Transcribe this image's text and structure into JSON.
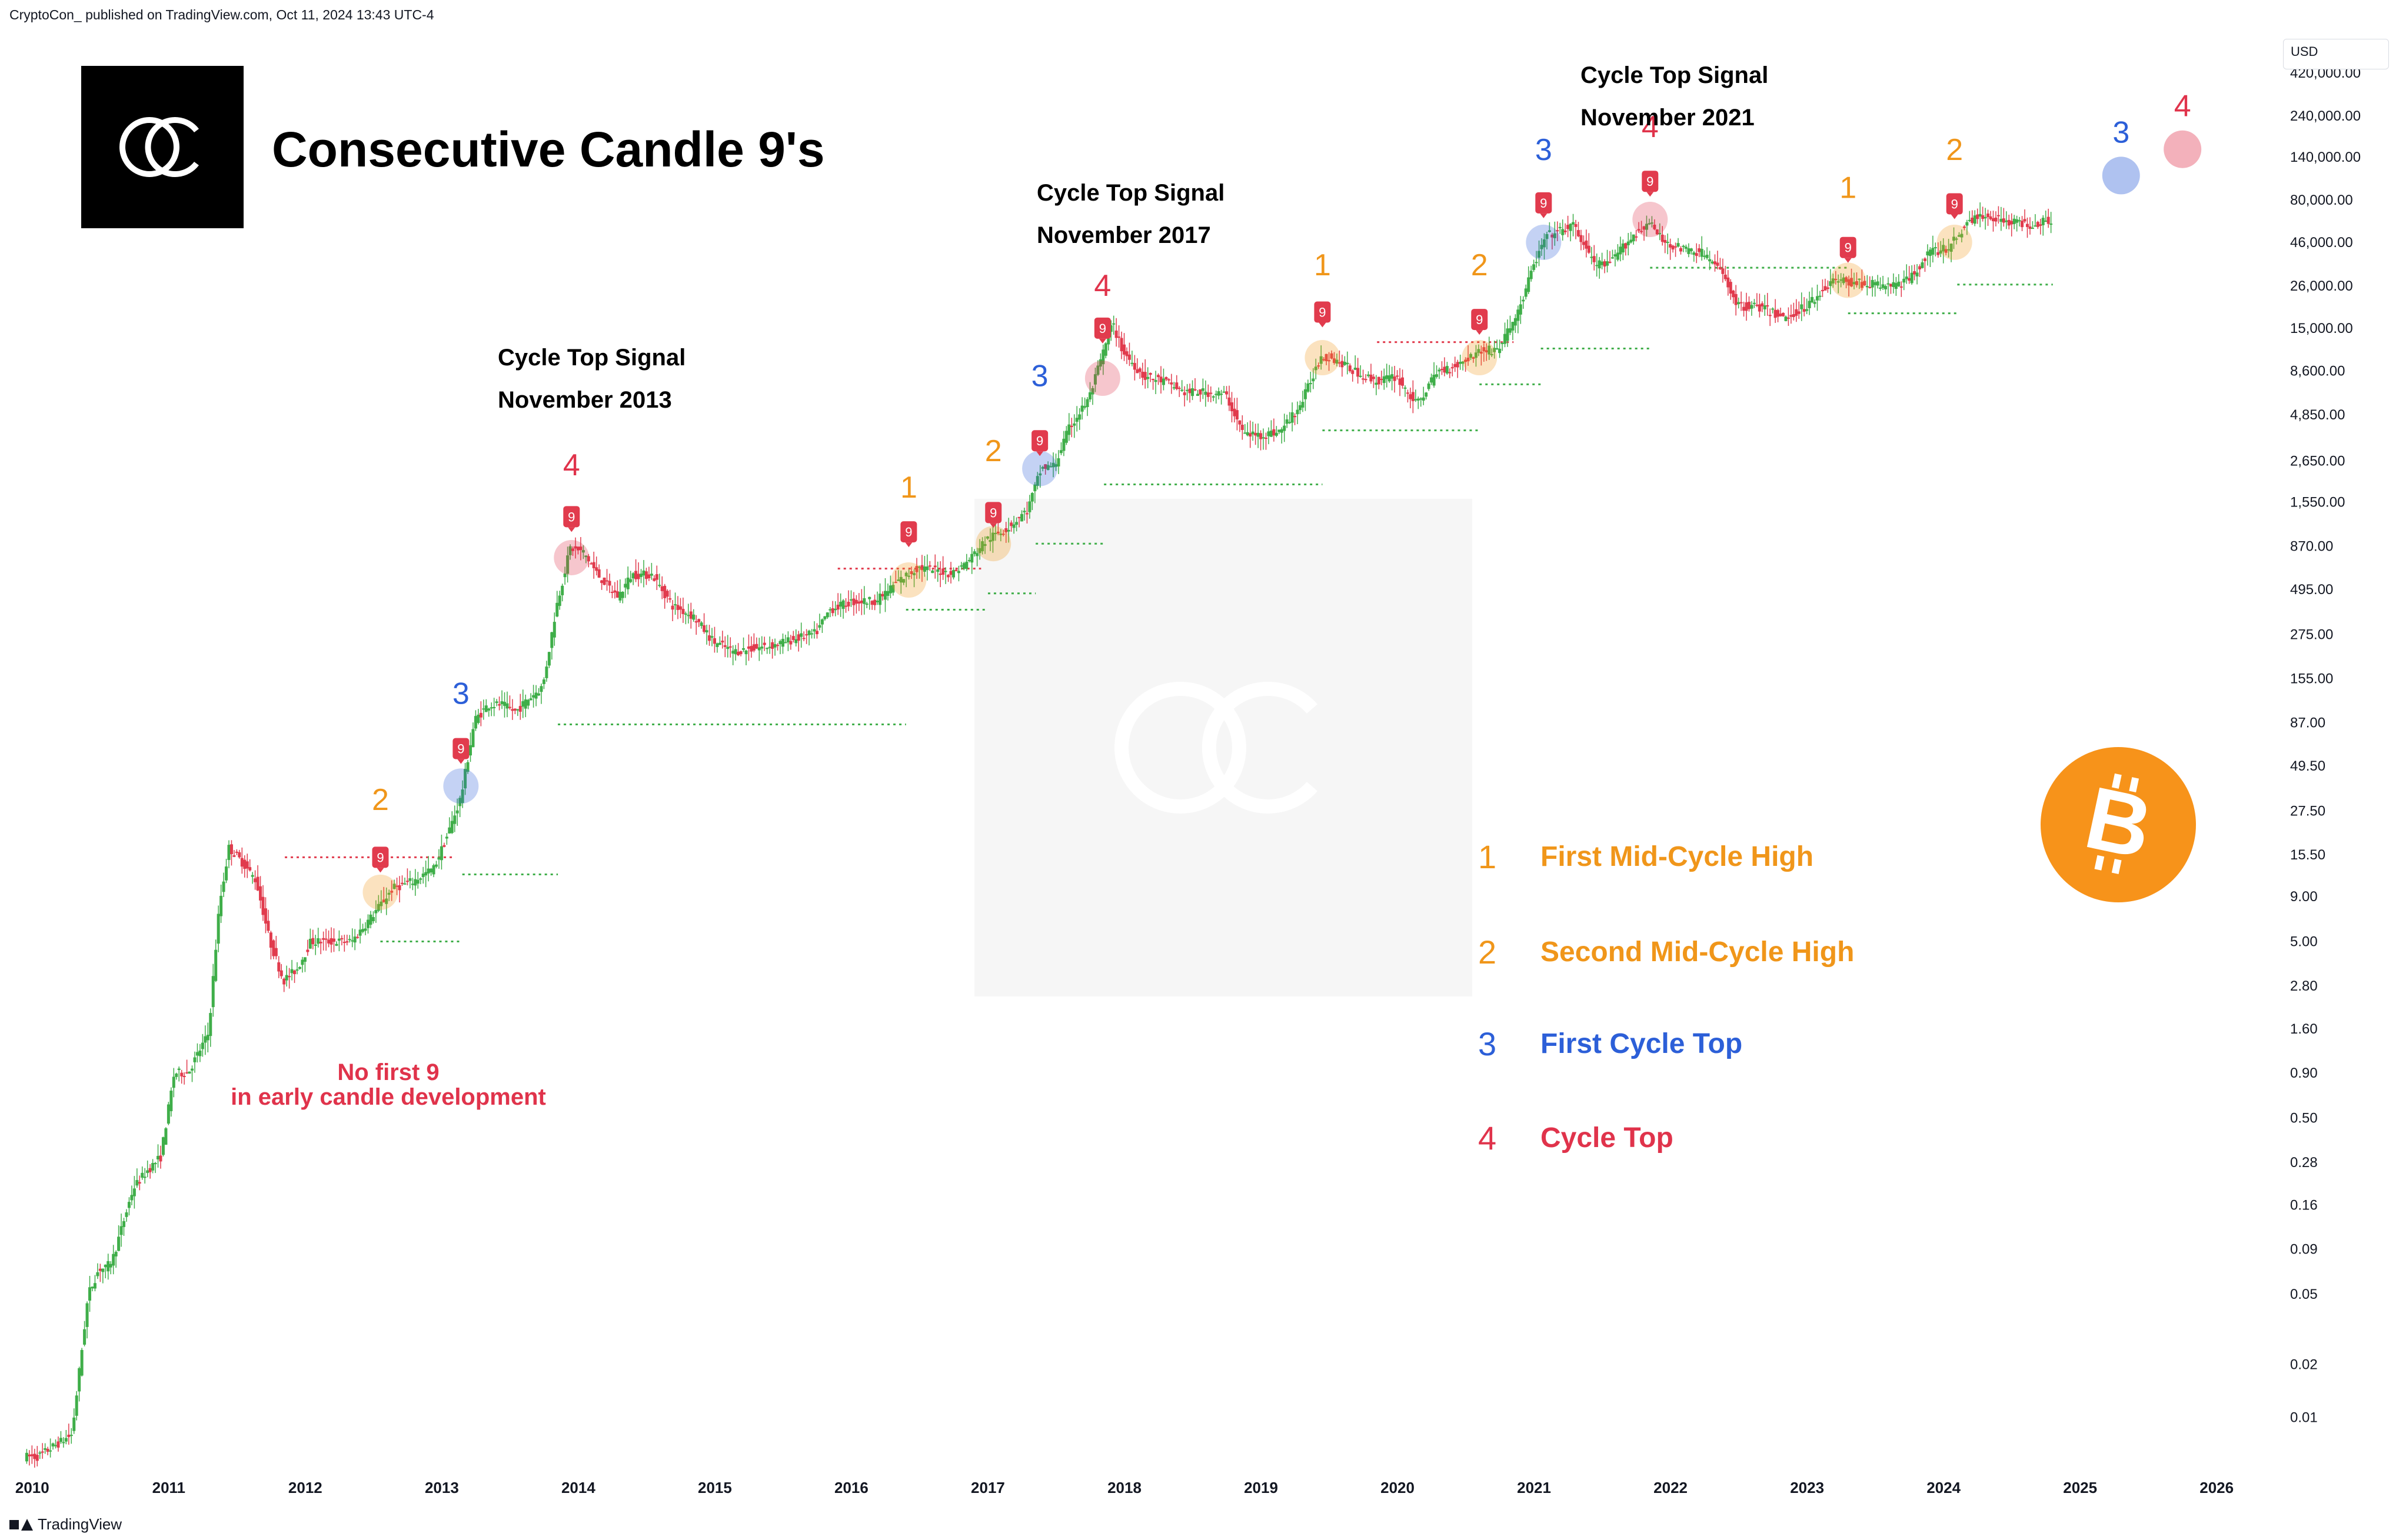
{
  "header": {
    "published": "CryptoCon_ published on TradingView.com, Oct 11, 2024 13:43 UTC-4"
  },
  "footer": {
    "brand": "TradingView"
  },
  "chart_data": {
    "type": "candlestick",
    "title": "Consecutive Candle 9's",
    "yscale": "log",
    "currency": "USD",
    "ylim": [
      0.005,
      800000
    ],
    "xlim": [
      2009.85,
      2026.4
    ],
    "y_ticks": [
      {
        "v": 420000,
        "label": "420,000.00"
      },
      {
        "v": 240000,
        "label": "240,000.00"
      },
      {
        "v": 140000,
        "label": "140,000.00"
      },
      {
        "v": 80000,
        "label": "80,000.00"
      },
      {
        "v": 46000,
        "label": "46,000.00"
      },
      {
        "v": 26000,
        "label": "26,000.00"
      },
      {
        "v": 15000,
        "label": "15,000.00"
      },
      {
        "v": 8600,
        "label": "8,600.00"
      },
      {
        "v": 4850,
        "label": "4,850.00"
      },
      {
        "v": 2650,
        "label": "2,650.00"
      },
      {
        "v": 1550,
        "label": "1,550.00"
      },
      {
        "v": 870,
        "label": "870.00"
      },
      {
        "v": 495,
        "label": "495.00"
      },
      {
        "v": 275,
        "label": "275.00"
      },
      {
        "v": 155,
        "label": "155.00"
      },
      {
        "v": 87,
        "label": "87.00"
      },
      {
        "v": 49.5,
        "label": "49.50"
      },
      {
        "v": 27.5,
        "label": "27.50"
      },
      {
        "v": 15.5,
        "label": "15.50"
      },
      {
        "v": 9,
        "label": "9.00"
      },
      {
        "v": 5,
        "label": "5.00"
      },
      {
        "v": 2.8,
        "label": "2.80"
      },
      {
        "v": 1.6,
        "label": "1.60"
      },
      {
        "v": 0.9,
        "label": "0.90"
      },
      {
        "v": 0.5,
        "label": "0.50"
      },
      {
        "v": 0.28,
        "label": "0.28"
      },
      {
        "v": 0.16,
        "label": "0.16"
      },
      {
        "v": 0.09,
        "label": "0.09"
      },
      {
        "v": 0.05,
        "label": "0.05"
      },
      {
        "v": 0.02,
        "label": "0.02"
      },
      {
        "v": 0.01,
        "label": "0.01"
      }
    ],
    "x_ticks": [
      {
        "v": 2010,
        "label": "2010"
      },
      {
        "v": 2011,
        "label": "2011"
      },
      {
        "v": 2012,
        "label": "2012"
      },
      {
        "v": 2013,
        "label": "2013"
      },
      {
        "v": 2014,
        "label": "2014"
      },
      {
        "v": 2015,
        "label": "2015"
      },
      {
        "v": 2016,
        "label": "2016"
      },
      {
        "v": 2017,
        "label": "2017"
      },
      {
        "v": 2018,
        "label": "2018"
      },
      {
        "v": 2019,
        "label": "2019"
      },
      {
        "v": 2020,
        "label": "2020"
      },
      {
        "v": 2021,
        "label": "2021"
      },
      {
        "v": 2022,
        "label": "2022"
      },
      {
        "v": 2023,
        "label": "2023"
      },
      {
        "v": 2024,
        "label": "2024"
      },
      {
        "v": 2025,
        "label": "2025"
      },
      {
        "v": 2026,
        "label": "2026"
      }
    ],
    "price_path": [
      [
        2009.95,
        0.006
      ],
      [
        2010.05,
        0.006
      ],
      [
        2010.3,
        0.008
      ],
      [
        2010.42,
        0.05
      ],
      [
        2010.5,
        0.07
      ],
      [
        2010.55,
        0.07
      ],
      [
        2010.6,
        0.08
      ],
      [
        2010.75,
        0.2
      ],
      [
        2010.85,
        0.25
      ],
      [
        2010.95,
        0.3
      ],
      [
        2011.05,
        0.9
      ],
      [
        2011.15,
        0.9
      ],
      [
        2011.3,
        1.5
      ],
      [
        2011.38,
        8
      ],
      [
        2011.45,
        17
      ],
      [
        2011.55,
        14
      ],
      [
        2011.65,
        11
      ],
      [
        2011.75,
        5
      ],
      [
        2011.85,
        3
      ],
      [
        2011.95,
        3.5
      ],
      [
        2012.05,
        5
      ],
      [
        2012.2,
        5
      ],
      [
        2012.35,
        5
      ],
      [
        2012.5,
        7
      ],
      [
        2012.65,
        10
      ],
      [
        2012.8,
        11
      ],
      [
        2012.95,
        13
      ],
      [
        2013.05,
        20
      ],
      [
        2013.15,
        33
      ],
      [
        2013.25,
        90
      ],
      [
        2013.35,
        110
      ],
      [
        2013.45,
        110
      ],
      [
        2013.55,
        100
      ],
      [
        2013.65,
        120
      ],
      [
        2013.75,
        140
      ],
      [
        2013.85,
        400
      ],
      [
        2013.95,
        850
      ],
      [
        2014.05,
        800
      ],
      [
        2014.15,
        600
      ],
      [
        2014.3,
        450
      ],
      [
        2014.4,
        600
      ],
      [
        2014.55,
        600
      ],
      [
        2014.7,
        400
      ],
      [
        2014.85,
        350
      ],
      [
        2015.0,
        250
      ],
      [
        2015.15,
        220
      ],
      [
        2015.3,
        230
      ],
      [
        2015.45,
        240
      ],
      [
        2015.6,
        260
      ],
      [
        2015.75,
        280
      ],
      [
        2015.85,
        380
      ],
      [
        2016.0,
        420
      ],
      [
        2016.2,
        430
      ],
      [
        2016.35,
        550
      ],
      [
        2016.5,
        660
      ],
      [
        2016.6,
        640
      ],
      [
        2016.75,
        610
      ],
      [
        2016.85,
        700
      ],
      [
        2017.0,
        950
      ],
      [
        2017.15,
        1100
      ],
      [
        2017.3,
        1400
      ],
      [
        2017.4,
        2400
      ],
      [
        2017.5,
        2500
      ],
      [
        2017.6,
        4000
      ],
      [
        2017.75,
        6000
      ],
      [
        2017.92,
        16000
      ],
      [
        2018.0,
        11000
      ],
      [
        2018.15,
        8000
      ],
      [
        2018.3,
        7500
      ],
      [
        2018.45,
        6500
      ],
      [
        2018.6,
        6500
      ],
      [
        2018.75,
        6300
      ],
      [
        2018.88,
        3800
      ],
      [
        2019.0,
        3700
      ],
      [
        2019.15,
        3900
      ],
      [
        2019.3,
        5500
      ],
      [
        2019.45,
        10500
      ],
      [
        2019.55,
        10000
      ],
      [
        2019.7,
        8500
      ],
      [
        2019.85,
        7500
      ],
      [
        2020.0,
        8000
      ],
      [
        2020.15,
        5500
      ],
      [
        2020.3,
        8500
      ],
      [
        2020.45,
        9300
      ],
      [
        2020.6,
        11000
      ],
      [
        2020.75,
        11500
      ],
      [
        2020.9,
        19000
      ],
      [
        2021.0,
        33000
      ],
      [
        2021.1,
        50000
      ],
      [
        2021.3,
        57000
      ],
      [
        2021.45,
        35000
      ],
      [
        2021.55,
        34000
      ],
      [
        2021.7,
        47000
      ],
      [
        2021.85,
        60000
      ],
      [
        2021.95,
        47000
      ],
      [
        2022.1,
        42000
      ],
      [
        2022.25,
        40000
      ],
      [
        2022.4,
        30000
      ],
      [
        2022.5,
        20000
      ],
      [
        2022.65,
        20000
      ],
      [
        2022.85,
        17000
      ],
      [
        2023.0,
        20000
      ],
      [
        2023.2,
        28000
      ],
      [
        2023.4,
        27000
      ],
      [
        2023.6,
        26000
      ],
      [
        2023.75,
        28000
      ],
      [
        2023.9,
        40000
      ],
      [
        2024.05,
        43000
      ],
      [
        2024.2,
        62000
      ],
      [
        2024.35,
        65000
      ],
      [
        2024.5,
        60000
      ],
      [
        2024.65,
        58000
      ],
      [
        2024.78,
        62000
      ]
    ],
    "markers": [
      {
        "num": "2",
        "kind": "mid",
        "x": 2012.55,
        "y": 9.5
      },
      {
        "num": "3",
        "kind": "first_top",
        "x": 2013.14,
        "y": 38
      },
      {
        "num": "4",
        "kind": "top",
        "x": 2013.95,
        "y": 750
      },
      {
        "num": "1",
        "kind": "mid",
        "x": 2016.42,
        "y": 560
      },
      {
        "num": "2",
        "kind": "mid",
        "x": 2017.04,
        "y": 900
      },
      {
        "num": "3",
        "kind": "first_top",
        "x": 2017.38,
        "y": 2400
      },
      {
        "num": "4",
        "kind": "top",
        "x": 2017.84,
        "y": 7800
      },
      {
        "num": "1",
        "kind": "mid",
        "x": 2019.45,
        "y": 10200
      },
      {
        "num": "2",
        "kind": "mid",
        "x": 2020.6,
        "y": 10200
      },
      {
        "num": "3",
        "kind": "first_top",
        "x": 2021.07,
        "y": 46000
      },
      {
        "num": "4",
        "kind": "top",
        "x": 2021.85,
        "y": 62000
      },
      {
        "num": "1",
        "kind": "mid",
        "x": 2023.3,
        "y": 28000
      },
      {
        "num": "2",
        "kind": "mid",
        "x": 2024.08,
        "y": 46000
      }
    ],
    "projections": [
      {
        "num": "3",
        "kind": "first_top",
        "x": 2025.3,
        "y": 110000
      },
      {
        "num": "4",
        "kind": "top",
        "x": 2025.75,
        "y": 155000
      }
    ],
    "nine_badges": [
      {
        "label": "9",
        "x": 2012.55,
        "y": 15
      },
      {
        "label": "9",
        "x": 2013.14,
        "y": 62
      },
      {
        "label": "9",
        "x": 2013.95,
        "y": 1280
      },
      {
        "label": "9",
        "x": 2016.42,
        "y": 1050
      },
      {
        "label": "9",
        "x": 2017.04,
        "y": 1350
      },
      {
        "label": "9",
        "x": 2017.38,
        "y": 3450
      },
      {
        "label": "9",
        "x": 2017.84,
        "y": 15000
      },
      {
        "label": "9",
        "x": 2019.45,
        "y": 18500
      },
      {
        "label": "9",
        "x": 2020.6,
        "y": 16800
      },
      {
        "label": "9",
        "x": 2021.07,
        "y": 77000
      },
      {
        "label": "9",
        "x": 2021.85,
        "y": 102000
      },
      {
        "label": "9",
        "x": 2023.3,
        "y": 43000
      },
      {
        "label": "9",
        "x": 2024.08,
        "y": 76000
      }
    ],
    "red_lines": [
      {
        "x0": 2011.85,
        "x1": 2013.1,
        "y": 15
      },
      {
        "x0": 2015.9,
        "x1": 2016.95,
        "y": 650
      },
      {
        "x0": 2019.85,
        "x1": 2020.85,
        "y": 12500
      }
    ],
    "green_lines": [
      {
        "x0": 2012.55,
        "x1": 2013.15,
        "y": 5
      },
      {
        "x0": 2013.15,
        "x1": 2013.85,
        "y": 12
      },
      {
        "x0": 2013.85,
        "x1": 2016.4,
        "y": 85
      },
      {
        "x0": 2016.4,
        "x1": 2017.0,
        "y": 380
      },
      {
        "x0": 2017.0,
        "x1": 2017.35,
        "y": 470
      },
      {
        "x0": 2017.35,
        "x1": 2017.85,
        "y": 900
      },
      {
        "x0": 2017.85,
        "x1": 2019.45,
        "y": 1950
      },
      {
        "x0": 2019.45,
        "x1": 2020.6,
        "y": 3950
      },
      {
        "x0": 2020.6,
        "x1": 2021.05,
        "y": 7200
      },
      {
        "x0": 2021.05,
        "x1": 2021.85,
        "y": 11500
      },
      {
        "x0": 2021.85,
        "x1": 2023.3,
        "y": 33000
      },
      {
        "x0": 2023.3,
        "x1": 2024.1,
        "y": 18200
      },
      {
        "x0": 2024.1,
        "x1": 2024.8,
        "y": 26500
      }
    ]
  },
  "annotations": {
    "cycle_2013_line1": "Cycle Top Signal",
    "cycle_2013_line2": "November 2013",
    "cycle_2017_line1": "Cycle Top Signal",
    "cycle_2017_line2": "November 2017",
    "cycle_2021_line1": "Cycle Top Signal",
    "cycle_2021_line2": "November 2021",
    "note_line1": "No first 9",
    "note_line2": "in early candle development"
  },
  "legend": [
    {
      "num": "1",
      "label": "First Mid-Cycle High",
      "color": "#f0961a"
    },
    {
      "num": "2",
      "label": "Second Mid-Cycle High",
      "color": "#f0961a"
    },
    {
      "num": "3",
      "label": "First Cycle Top",
      "color": "#2c5fd8"
    },
    {
      "num": "4",
      "label": "Cycle Top",
      "color": "#e0334b"
    }
  ],
  "colors": {
    "up": "#3fae49",
    "down": "#e13b4d",
    "mid": "#f0961a",
    "first_top": "#2c5fd8",
    "top": "#e0334b",
    "bitcoin": "#f7931a",
    "axis_text": "#131722"
  },
  "axis_currency_label": "USD"
}
